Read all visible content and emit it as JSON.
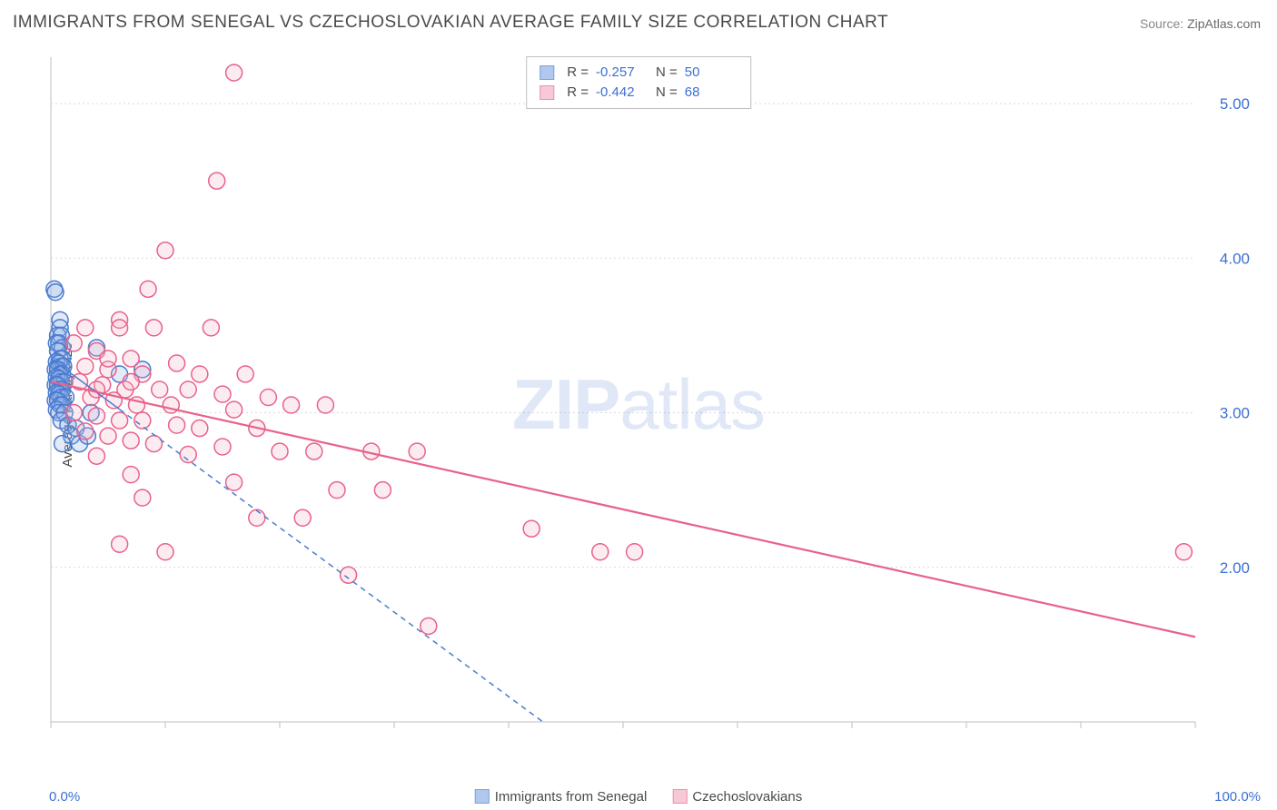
{
  "title": "IMMIGRANTS FROM SENEGAL VS CZECHOSLOVAKIAN AVERAGE FAMILY SIZE CORRELATION CHART",
  "source_label": "Source:",
  "source_value": "ZipAtlas.com",
  "watermark_a": "ZIP",
  "watermark_b": "atlas",
  "chart": {
    "type": "scatter",
    "ylabel": "Average Family Size",
    "xmin_label": "0.0%",
    "xmax_label": "100.0%",
    "xlim": [
      0,
      100
    ],
    "ylim": [
      1.0,
      5.3
    ],
    "yticks": [
      2.0,
      3.0,
      4.0,
      5.0
    ],
    "ytick_labels": [
      "2.00",
      "3.00",
      "4.00",
      "5.00"
    ],
    "grid_color": "#d9d9d9",
    "grid_dash": "2,3",
    "axis_color": "#bfbfbf",
    "background_color": "#ffffff",
    "marker_radius": 9,
    "marker_stroke_width": 1.5,
    "marker_fill_opacity": 0.25,
    "series": [
      {
        "name": "Immigrants from Senegal",
        "legend_label": "Immigrants from Senegal",
        "color_stroke": "#4a7bd0",
        "color_fill": "#8fb0e8",
        "R": "-0.257",
        "N": "50",
        "trend": {
          "x1": 0,
          "y1": 3.35,
          "x2": 43,
          "y2": 1.0,
          "dash": "6,5",
          "width": 1.5,
          "solid_until_x": 6
        },
        "points": [
          [
            0.3,
            3.8
          ],
          [
            0.4,
            3.78
          ],
          [
            0.8,
            3.6
          ],
          [
            0.8,
            3.55
          ],
          [
            0.6,
            3.5
          ],
          [
            0.9,
            3.5
          ],
          [
            0.5,
            3.45
          ],
          [
            0.7,
            3.45
          ],
          [
            1.0,
            3.42
          ],
          [
            0.6,
            3.4
          ],
          [
            0.8,
            3.35
          ],
          [
            1.0,
            3.35
          ],
          [
            0.5,
            3.33
          ],
          [
            0.7,
            3.32
          ],
          [
            0.9,
            3.3
          ],
          [
            1.1,
            3.3
          ],
          [
            0.4,
            3.28
          ],
          [
            0.6,
            3.28
          ],
          [
            0.8,
            3.25
          ],
          [
            1.0,
            3.25
          ],
          [
            0.5,
            3.23
          ],
          [
            0.7,
            3.22
          ],
          [
            0.9,
            3.2
          ],
          [
            1.2,
            3.2
          ],
          [
            0.4,
            3.18
          ],
          [
            0.6,
            3.18
          ],
          [
            0.8,
            3.15
          ],
          [
            1.0,
            3.15
          ],
          [
            0.5,
            3.13
          ],
          [
            0.7,
            3.12
          ],
          [
            0.9,
            3.1
          ],
          [
            1.3,
            3.1
          ],
          [
            0.4,
            3.08
          ],
          [
            0.6,
            3.08
          ],
          [
            0.8,
            3.05
          ],
          [
            1.0,
            3.05
          ],
          [
            0.5,
            3.02
          ],
          [
            0.7,
            3.0
          ],
          [
            1.2,
            3.0
          ],
          [
            4.0,
            3.42
          ],
          [
            3.5,
            3.0
          ],
          [
            0.9,
            2.95
          ],
          [
            1.5,
            2.92
          ],
          [
            2.2,
            2.9
          ],
          [
            1.8,
            2.85
          ],
          [
            1.0,
            2.8
          ],
          [
            2.5,
            2.8
          ],
          [
            3.2,
            2.85
          ],
          [
            6.0,
            3.25
          ],
          [
            8.0,
            3.28
          ]
        ]
      },
      {
        "name": "Czechoslovakians",
        "legend_label": "Czechoslovakians",
        "color_stroke": "#e8628a",
        "color_fill": "#f5b3c6",
        "R": "-0.442",
        "N": "68",
        "trend": {
          "x1": 0,
          "y1": 3.2,
          "x2": 100,
          "y2": 1.55,
          "dash": null,
          "width": 2.2
        },
        "points": [
          [
            16.0,
            5.2
          ],
          [
            14.5,
            4.5
          ],
          [
            10.0,
            4.05
          ],
          [
            8.5,
            3.8
          ],
          [
            6.0,
            3.6
          ],
          [
            9.0,
            3.55
          ],
          [
            14.0,
            3.55
          ],
          [
            4.0,
            3.4
          ],
          [
            7.0,
            3.35
          ],
          [
            11.0,
            3.32
          ],
          [
            3.0,
            3.3
          ],
          [
            5.0,
            3.28
          ],
          [
            8.0,
            3.25
          ],
          [
            13.0,
            3.25
          ],
          [
            17.0,
            3.25
          ],
          [
            2.5,
            3.2
          ],
          [
            4.5,
            3.18
          ],
          [
            6.5,
            3.15
          ],
          [
            9.5,
            3.15
          ],
          [
            12.0,
            3.15
          ],
          [
            15.0,
            3.12
          ],
          [
            19.0,
            3.1
          ],
          [
            3.5,
            3.1
          ],
          [
            5.5,
            3.08
          ],
          [
            7.5,
            3.05
          ],
          [
            10.5,
            3.05
          ],
          [
            16.0,
            3.02
          ],
          [
            21.0,
            3.05
          ],
          [
            24.0,
            3.05
          ],
          [
            2.0,
            3.0
          ],
          [
            4.0,
            2.98
          ],
          [
            6.0,
            2.95
          ],
          [
            8.0,
            2.95
          ],
          [
            11.0,
            2.92
          ],
          [
            13.0,
            2.9
          ],
          [
            18.0,
            2.9
          ],
          [
            3.0,
            2.88
          ],
          [
            5.0,
            2.85
          ],
          [
            7.0,
            2.82
          ],
          [
            9.0,
            2.8
          ],
          [
            15.0,
            2.78
          ],
          [
            23.0,
            2.75
          ],
          [
            4.0,
            2.72
          ],
          [
            12.0,
            2.73
          ],
          [
            20.0,
            2.75
          ],
          [
            28.0,
            2.75
          ],
          [
            32.0,
            2.75
          ],
          [
            7.0,
            2.6
          ],
          [
            16.0,
            2.55
          ],
          [
            25.0,
            2.5
          ],
          [
            29.0,
            2.5
          ],
          [
            8.0,
            2.45
          ],
          [
            18.0,
            2.32
          ],
          [
            22.0,
            2.32
          ],
          [
            42.0,
            2.25
          ],
          [
            6.0,
            2.15
          ],
          [
            10.0,
            2.1
          ],
          [
            48.0,
            2.1
          ],
          [
            51.0,
            2.1
          ],
          [
            26.0,
            1.95
          ],
          [
            33.0,
            1.62
          ],
          [
            99.0,
            2.1
          ],
          [
            2.0,
            3.45
          ],
          [
            3.0,
            3.55
          ],
          [
            4.0,
            3.15
          ],
          [
            5.0,
            3.35
          ],
          [
            6.0,
            3.55
          ],
          [
            7.0,
            3.2
          ]
        ]
      }
    ]
  },
  "legend_top": {
    "r_label": "R =",
    "n_label": "N ="
  }
}
